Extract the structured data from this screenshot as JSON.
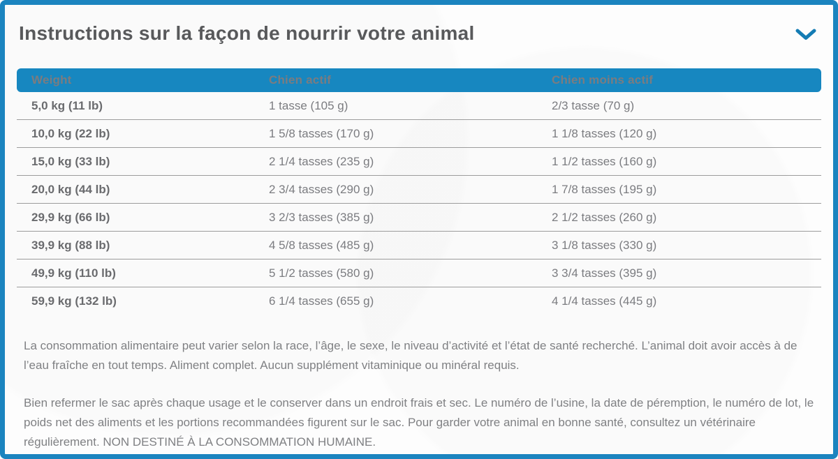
{
  "accordion": {
    "title": "Instructions sur la façon de nourrir votre animal",
    "chevron_icon": "chevron-down"
  },
  "table": {
    "columns": [
      "Weight",
      "Chien actif",
      "Chien moins actif"
    ],
    "rows": [
      [
        "5,0 kg (11 lb)",
        "1 tasse (105 g)",
        "2/3 tasse (70 g)"
      ],
      [
        "10,0 kg (22 lb)",
        "1 5/8 tasses (170 g)",
        "1 1/8 tasses (120 g)"
      ],
      [
        "15,0 kg (33 lb)",
        "2 1/4 tasses (235 g)",
        "1 1/2 tasses (160 g)"
      ],
      [
        "20,0 kg (44 lb)",
        "2 3/4 tasses (290 g)",
        "1 7/8 tasses (195 g)"
      ],
      [
        "29,9 kg (66 lb)",
        "3 2/3 tasses (385 g)",
        "2 1/2 tasses (260 g)"
      ],
      [
        "39,9 kg (88 lb)",
        "4 5/8 tasses (485 g)",
        "3 1/8 tasses (330 g)"
      ],
      [
        "49,9 kg (110 lb)",
        "5 1/2 tasses (580 g)",
        "3 3/4 tasses (395 g)"
      ],
      [
        "59,9 kg (132 lb)",
        "6 1/4 tasses (655 g)",
        "4 1/4 tasses (445 g)"
      ]
    ]
  },
  "notes": [
    "La consommation alimentaire peut varier selon la race, l’âge, le sexe, le niveau d’activité et l’état de santé recherché. L’animal doit avoir accès à de l’eau fraîche en tout temps. Aliment complet. Aucun supplément vitaminique ou minéral requis.",
    "Bien refermer le sac après chaque usage et le conserver dans un endroit frais et sec. Le numéro de l’usine, la date de péremption, le numéro de lot, le poids net des aliments et les portions recommandées figurent sur le sac. Pour garder votre animal en bonne santé, consultez un vétérinaire régulièrement. NON DESTINÉ À LA CONSOMMATION HUMAINE."
  ],
  "colors": {
    "accent": "#1787c0",
    "border": "#1b84bf",
    "title_text": "#58595b",
    "body_text": "#7f8083",
    "header_text": "#ffffff"
  }
}
